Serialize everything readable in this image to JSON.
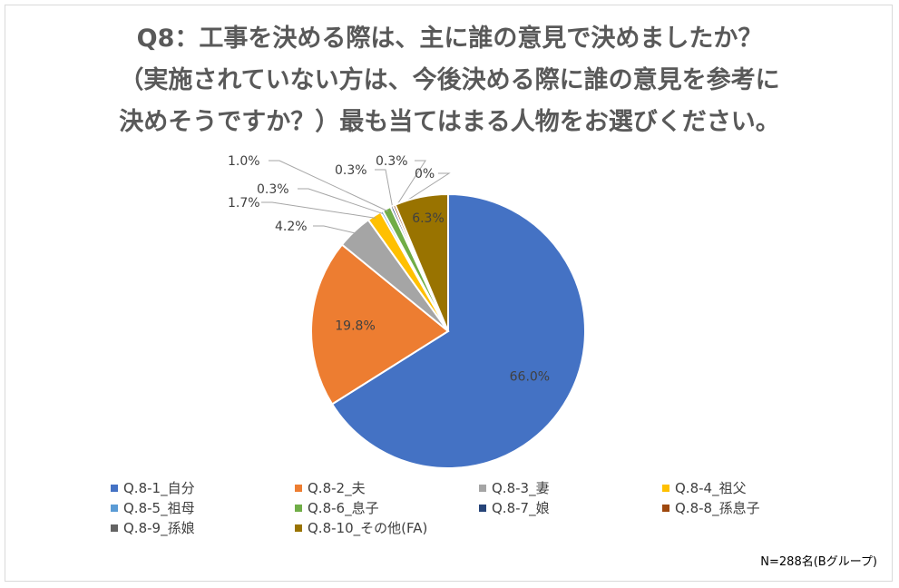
{
  "title_lines": [
    "Q8：工事を決める際は、主に誰の意見で決めましたか？",
    "（実施されていない方は、今後決める際に誰の意見を参考に",
    "決めそうですか？）最も当てはまる人物をお選びください。"
  ],
  "chart_data": {
    "type": "pie",
    "title": "Q8：工事を決める際は、主に誰の意見で決めましたか？（実施されていない方は、今後決める際に誰の意見を参考に決めそうですか？）最も当てはまる人物をお選びください。",
    "slices": [
      {
        "label": "Q.8-1_自分",
        "value": 66.0,
        "display": "66.0%",
        "color": "#4472C4"
      },
      {
        "label": "Q.8-2_夫",
        "value": 19.8,
        "display": "19.8%",
        "color": "#ED7D31"
      },
      {
        "label": "Q.8-3_妻",
        "value": 4.2,
        "display": "4.2%",
        "color": "#A5A5A5"
      },
      {
        "label": "Q.8-4_祖父",
        "value": 1.7,
        "display": "1.7%",
        "color": "#FFC000"
      },
      {
        "label": "Q.8-5_祖母",
        "value": 0.3,
        "display": "0.3%",
        "color": "#5B9BD5"
      },
      {
        "label": "Q.8-6_息子",
        "value": 1.0,
        "display": "1.0%",
        "color": "#70AD47"
      },
      {
        "label": "Q.8-7_娘",
        "value": 0.3,
        "display": "0.3%",
        "color": "#264478"
      },
      {
        "label": "Q.8-8_孫息子",
        "value": 0.3,
        "display": "0.3%",
        "color": "#9E480E"
      },
      {
        "label": "Q.8-9_孫娘",
        "value": 0.0,
        "display": "0%",
        "color": "#636363"
      },
      {
        "label": "Q.8-10_その他(FA)",
        "value": 6.3,
        "display": "6.3%",
        "color": "#997300"
      }
    ],
    "legend_position": "bottom"
  },
  "footnote": "N=288名(Bグループ)"
}
